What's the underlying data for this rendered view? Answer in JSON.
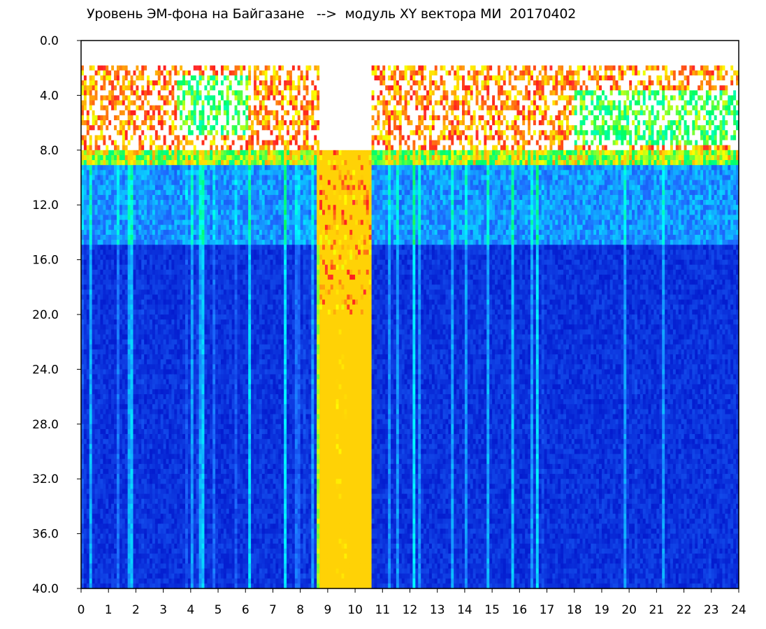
{
  "chart_data": {
    "type": "heatmap",
    "title": "Уровень ЭМ-фона на Байгазане   -->  модуль XY вектора МИ  20170402",
    "xlabel": "",
    "ylabel": "",
    "x_range": [
      0,
      24
    ],
    "y_range": [
      0,
      40
    ],
    "y_inverted": true,
    "x_ticks": [
      "0",
      "1",
      "2",
      "3",
      "4",
      "5",
      "6",
      "7",
      "8",
      "9",
      "10",
      "11",
      "12",
      "13",
      "14",
      "15",
      "16",
      "17",
      "18",
      "19",
      "20",
      "21",
      "22",
      "23",
      "24"
    ],
    "y_ticks": [
      "0.0",
      "4.0",
      "8.0",
      "12.0",
      "16.0",
      "20.0",
      "24.0",
      "28.0",
      "32.0",
      "36.0",
      "40.0"
    ],
    "colormap": [
      "#ffffff",
      "#ff1a1a",
      "#ffff00",
      "#00ff66",
      "#00ffff",
      "#1a6bff",
      "#0010cc"
    ],
    "bands": [
      {
        "y_range": [
          2,
          8
        ],
        "level": "high, patchy (red / yellow / green)"
      },
      {
        "y_range": [
          8,
          9
        ],
        "level": "red / yellow edge"
      },
      {
        "y_range": [
          9,
          15
        ],
        "level": "medium (cyan / blue)"
      },
      {
        "y_range": [
          15,
          40
        ],
        "level": "low (dark blue)"
      }
    ],
    "features": [
      {
        "x_range": [
          8.7,
          10.5
        ],
        "y_range": [
          8,
          40
        ],
        "description": "low-background notch, green / yellow vertical streaks"
      },
      {
        "x_range": [
          3.5,
          6.0
        ],
        "y_range": [
          2,
          7
        ],
        "description": "high-level green blob"
      }
    ],
    "grid": false,
    "legend": "none"
  }
}
